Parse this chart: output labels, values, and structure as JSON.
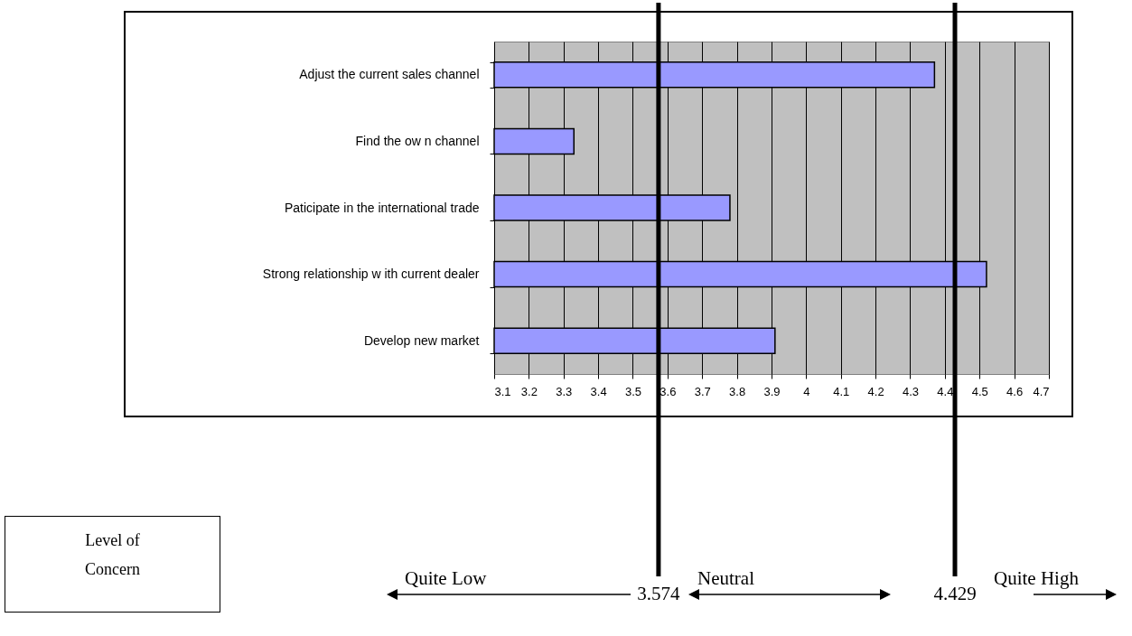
{
  "chart_data": {
    "type": "bar",
    "orientation": "horizontal",
    "categories": [
      "Adjust the current sales channel",
      "Find the ow n channel",
      "Paticipate in the international trade",
      "Strong relationship w ith current dealer",
      "Develop new  market"
    ],
    "values": [
      4.37,
      3.33,
      3.78,
      4.52,
      3.91
    ],
    "color": "#9999ff",
    "xlim": [
      3.1,
      4.7
    ],
    "xticks": [
      3.1,
      3.2,
      3.3,
      3.4,
      3.5,
      3.6,
      3.7,
      3.8,
      3.9,
      4,
      4.1,
      4.2,
      4.3,
      4.4,
      4.5,
      4.6,
      4.7
    ],
    "grid": "x",
    "ref_lines": [
      {
        "axis": "x",
        "value": 3.574,
        "label": "3.574",
        "color": "#000000"
      },
      {
        "axis": "x",
        "value": 4.429,
        "label": "4.429",
        "color": "#000000"
      }
    ],
    "annotations": [
      "Level of Concern",
      "Quite Low",
      "Neutral",
      "Quite High"
    ]
  }
}
